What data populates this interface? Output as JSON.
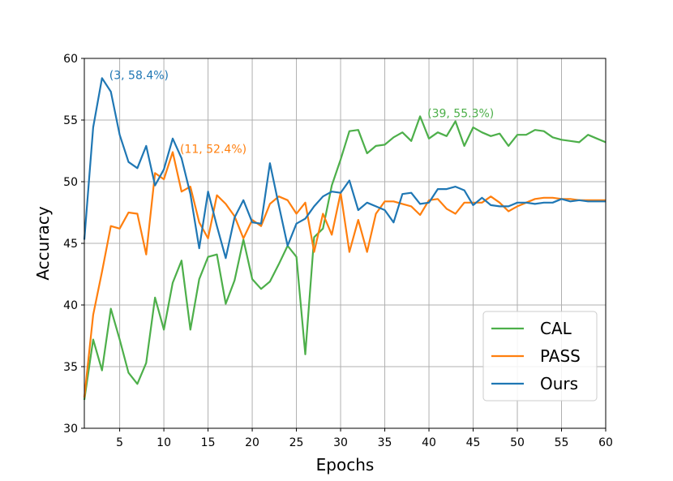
{
  "chart_data": {
    "type": "line",
    "xlabel": "Epochs",
    "ylabel": "Accuracy",
    "xlim": [
      1,
      60
    ],
    "ylim": [
      30,
      60
    ],
    "xticks": [
      5,
      10,
      15,
      20,
      25,
      30,
      35,
      40,
      45,
      50,
      55,
      60
    ],
    "yticks": [
      30,
      35,
      40,
      45,
      50,
      55,
      60
    ],
    "grid": true,
    "legend_position": "lower-right",
    "x": [
      1,
      2,
      3,
      4,
      5,
      6,
      7,
      8,
      9,
      10,
      11,
      12,
      13,
      14,
      15,
      16,
      17,
      18,
      19,
      20,
      21,
      22,
      23,
      24,
      25,
      26,
      27,
      28,
      29,
      30,
      31,
      32,
      33,
      34,
      35,
      36,
      37,
      38,
      39,
      40,
      41,
      42,
      43,
      44,
      45,
      46,
      47,
      48,
      49,
      50,
      51,
      52,
      53,
      54,
      55,
      56,
      57,
      58,
      59,
      60
    ],
    "series": [
      {
        "name": "CAL",
        "color": "#4daf4a",
        "values": [
          32.3,
          37.2,
          34.7,
          39.7,
          37.2,
          34.5,
          33.6,
          35.3,
          40.6,
          38.0,
          41.8,
          43.6,
          38.0,
          42.1,
          43.9,
          44.1,
          40.1,
          42.0,
          45.3,
          42.1,
          41.3,
          41.9,
          43.3,
          44.8,
          43.9,
          36.0,
          45.5,
          46.2,
          49.7,
          51.8,
          54.1,
          54.2,
          52.3,
          52.9,
          53.0,
          53.6,
          54.0,
          53.3,
          55.3,
          53.5,
          54.0,
          53.7,
          54.9,
          52.9,
          54.4,
          54.0,
          53.7,
          53.9,
          52.9,
          53.8,
          53.8,
          54.2,
          54.1,
          53.6,
          53.4,
          53.3,
          53.2,
          53.8,
          53.5,
          53.2
        ]
      },
      {
        "name": "PASS",
        "color": "#ff7f0e",
        "values": [
          32.5,
          39.2,
          42.7,
          46.4,
          46.2,
          47.5,
          47.4,
          44.1,
          50.7,
          50.2,
          52.4,
          49.2,
          49.6,
          46.7,
          45.4,
          48.9,
          48.2,
          47.2,
          45.4,
          46.9,
          46.4,
          48.2,
          48.8,
          48.5,
          47.4,
          48.3,
          44.3,
          47.4,
          45.7,
          49.1,
          44.3,
          46.9,
          44.3,
          47.4,
          48.4,
          48.4,
          48.2,
          48.0,
          47.3,
          48.5,
          48.6,
          47.8,
          47.4,
          48.3,
          48.3,
          48.3,
          48.8,
          48.3,
          47.6,
          48.0,
          48.3,
          48.6,
          48.7,
          48.7,
          48.6,
          48.6,
          48.5,
          48.5,
          48.5,
          48.5
        ]
      },
      {
        "name": "Ours",
        "color": "#1f77b4",
        "values": [
          45.3,
          54.4,
          58.4,
          57.3,
          53.8,
          51.6,
          51.1,
          52.9,
          49.7,
          51.0,
          53.5,
          51.9,
          49.0,
          44.6,
          49.2,
          46.4,
          43.8,
          47.1,
          48.5,
          46.7,
          46.6,
          51.5,
          48.1,
          44.8,
          46.6,
          47.0,
          48.0,
          48.8,
          49.2,
          49.1,
          50.1,
          47.7,
          48.3,
          48.0,
          47.7,
          46.7,
          49.0,
          49.1,
          48.2,
          48.3,
          49.4,
          49.4,
          49.6,
          49.3,
          48.1,
          48.7,
          48.1,
          48.0,
          48.0,
          48.3,
          48.3,
          48.2,
          48.3,
          48.3,
          48.6,
          48.4,
          48.5,
          48.4,
          48.4,
          48.4
        ]
      }
    ],
    "annotations": [
      {
        "text": "(3, 58.4%)",
        "x": 3,
        "y": 58.4,
        "series": "Ours",
        "color": "#1f77b4"
      },
      {
        "text": "(11, 52.4%)",
        "x": 11,
        "y": 52.4,
        "series": "PASS",
        "color": "#ff7f0e"
      },
      {
        "text": "(39, 55.3%)",
        "x": 39,
        "y": 55.3,
        "series": "CAL",
        "color": "#4daf4a"
      }
    ]
  }
}
